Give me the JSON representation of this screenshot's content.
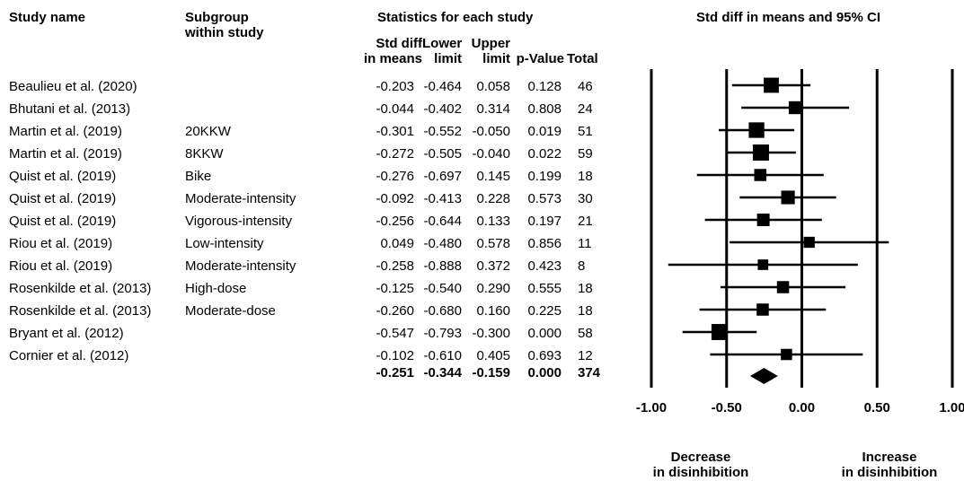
{
  "headers": {
    "study_name": "Study name",
    "subgroup_line1": "Subgroup",
    "subgroup_line2": "within study",
    "statistics": "Statistics for each study",
    "plot_title": "Std diff in means and 95% CI",
    "col_smd_line1": "Std diff",
    "col_smd_line2": "in means",
    "col_lower_line1": "Lower",
    "col_lower_line2": "limit",
    "col_upper_line1": "Upper",
    "col_upper_line2": "limit",
    "col_p": "p-Value",
    "col_total": "Total"
  },
  "rows": [
    {
      "study": "Beaulieu et al. (2020)",
      "subgroup": "",
      "smd": "-0.203",
      "lower": "-0.464",
      "upper": "0.058",
      "p": "0.128",
      "total": "46"
    },
    {
      "study": "Bhutani et al. (2013)",
      "subgroup": "",
      "smd": "-0.044",
      "lower": "-0.402",
      "upper": "0.314",
      "p": "0.808",
      "total": "24"
    },
    {
      "study": "Martin et al. (2019)",
      "subgroup": "20KKW",
      "smd": "-0.301",
      "lower": "-0.552",
      "upper": "-0.050",
      "p": "0.019",
      "total": "51"
    },
    {
      "study": "Martin et al. (2019)",
      "subgroup": "8KKW",
      "smd": "-0.272",
      "lower": "-0.505",
      "upper": "-0.040",
      "p": "0.022",
      "total": "59"
    },
    {
      "study": "Quist et al. (2019)",
      "subgroup": "Bike",
      "smd": "-0.276",
      "lower": "-0.697",
      "upper": "0.145",
      "p": "0.199",
      "total": "18"
    },
    {
      "study": "Quist et al. (2019)",
      "subgroup": "Moderate-intensity",
      "smd": "-0.092",
      "lower": "-0.413",
      "upper": "0.228",
      "p": "0.573",
      "total": "30"
    },
    {
      "study": "Quist et al. (2019)",
      "subgroup": "Vigorous-intensity",
      "smd": "-0.256",
      "lower": "-0.644",
      "upper": "0.133",
      "p": "0.197",
      "total": "21"
    },
    {
      "study": "Riou et al. (2019)",
      "subgroup": "Low-intensity",
      "smd": "0.049",
      "lower": "-0.480",
      "upper": "0.578",
      "p": "0.856",
      "total": "11"
    },
    {
      "study": "Riou et al. (2019)",
      "subgroup": "Moderate-intensity",
      "smd": "-0.258",
      "lower": "-0.888",
      "upper": "0.372",
      "p": "0.423",
      "total": "8"
    },
    {
      "study": "Rosenkilde et al. (2013)",
      "subgroup": "High-dose",
      "smd": "-0.125",
      "lower": "-0.540",
      "upper": "0.290",
      "p": "0.555",
      "total": "18"
    },
    {
      "study": "Rosenkilde et al. (2013)",
      "subgroup": "Moderate-dose",
      "smd": "-0.260",
      "lower": "-0.680",
      "upper": "0.160",
      "p": "0.225",
      "total": "18"
    },
    {
      "study": "Bryant et al. (2012)",
      "subgroup": "",
      "smd": "-0.547",
      "lower": "-0.793",
      "upper": "-0.300",
      "p": "0.000",
      "total": "58"
    },
    {
      "study": "Cornier et al. (2012)",
      "subgroup": "",
      "smd": "-0.102",
      "lower": "-0.610",
      "upper": "0.405",
      "p": "0.693",
      "total": "12"
    }
  ],
  "summary": {
    "smd": "-0.251",
    "lower": "-0.344",
    "upper": "-0.159",
    "p": "0.000",
    "total": "374"
  },
  "axis": {
    "ticks": [
      "-1.00",
      "-0.50",
      "0.00",
      "0.50",
      "1.00"
    ],
    "left_label_line1": "Decrease",
    "left_label_line2": "in disinhibition",
    "right_label_line1": "Increase",
    "right_label_line2": "in disinhibition"
  },
  "chart_data": {
    "type": "forest",
    "title": "Std diff in means and 95% CI",
    "xlim": [
      -1,
      1
    ],
    "x_ticks": [
      -1,
      -0.5,
      0,
      0.5,
      1
    ],
    "reference_lines": [
      -1,
      -0.5,
      0,
      0.5,
      1
    ],
    "marker_color": "#000000",
    "studies": [
      {
        "label": "Beaulieu et al. (2020)",
        "estimate": -0.203,
        "lower": -0.464,
        "upper": 0.058,
        "weight": 46
      },
      {
        "label": "Bhutani et al. (2013)",
        "estimate": -0.044,
        "lower": -0.402,
        "upper": 0.314,
        "weight": 24
      },
      {
        "label": "Martin et al. (2019) 20KKW",
        "estimate": -0.301,
        "lower": -0.552,
        "upper": -0.05,
        "weight": 51
      },
      {
        "label": "Martin et al. (2019) 8KKW",
        "estimate": -0.272,
        "lower": -0.505,
        "upper": -0.04,
        "weight": 59
      },
      {
        "label": "Quist et al. (2019) Bike",
        "estimate": -0.276,
        "lower": -0.697,
        "upper": 0.145,
        "weight": 18
      },
      {
        "label": "Quist et al. (2019) Moderate-intensity",
        "estimate": -0.092,
        "lower": -0.413,
        "upper": 0.228,
        "weight": 30
      },
      {
        "label": "Quist et al. (2019) Vigorous-intensity",
        "estimate": -0.256,
        "lower": -0.644,
        "upper": 0.133,
        "weight": 21
      },
      {
        "label": "Riou et al. (2019) Low-intensity",
        "estimate": 0.049,
        "lower": -0.48,
        "upper": 0.578,
        "weight": 11
      },
      {
        "label": "Riou et al. (2019) Moderate-intensity",
        "estimate": -0.258,
        "lower": -0.888,
        "upper": 0.372,
        "weight": 8
      },
      {
        "label": "Rosenkilde et al. (2013) High-dose",
        "estimate": -0.125,
        "lower": -0.54,
        "upper": 0.29,
        "weight": 18
      },
      {
        "label": "Rosenkilde et al. (2013) Moderate-dose",
        "estimate": -0.26,
        "lower": -0.68,
        "upper": 0.16,
        "weight": 18
      },
      {
        "label": "Bryant et al. (2012)",
        "estimate": -0.547,
        "lower": -0.793,
        "upper": -0.3,
        "weight": 58
      },
      {
        "label": "Cornier et al. (2012)",
        "estimate": -0.102,
        "lower": -0.61,
        "upper": 0.405,
        "weight": 12
      }
    ],
    "summary": {
      "estimate": -0.251,
      "lower": -0.344,
      "upper": -0.159
    }
  }
}
